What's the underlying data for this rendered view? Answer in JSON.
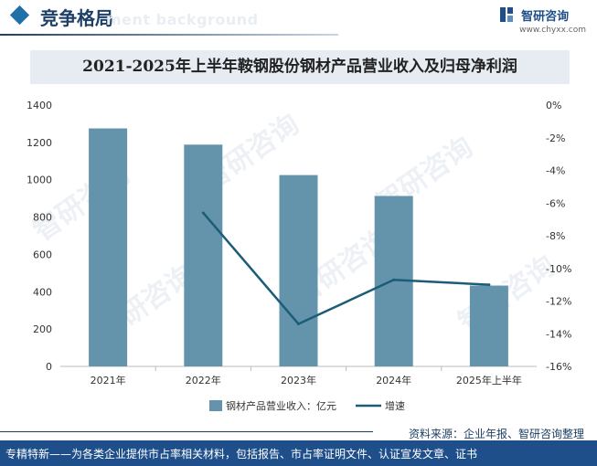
{
  "header": {
    "section_title": "竞争格局",
    "background_text": "ment background",
    "brand_name": "智研咨询",
    "brand_url": "www.chyxx.com"
  },
  "source": "资料来源：企业年报、智研咨询整理",
  "footer": "专精特新——为各类企业提供市占率相关材料，包括报告、市占率证明文件、认证宣发文章、证书",
  "colors": {
    "bar": "#6394ab",
    "line": "#1d5c78",
    "accent": "#1e4f8a"
  },
  "chart_data": {
    "type": "bar+line",
    "title": "2021-2025年上半年鞍钢股份钢材产品营业收入及归母净利润",
    "categories": [
      "2021年",
      "2022年",
      "2023年",
      "2024年",
      "2025年上半年"
    ],
    "bar_series": {
      "name": "钢材产品营业收入：亿元",
      "values": [
        1275,
        1188,
        1025,
        913,
        433
      ]
    },
    "line_series": {
      "name": "增速",
      "values": [
        null,
        -6.6,
        -13.4,
        -10.7,
        -11.0
      ]
    },
    "y_left": {
      "min": 0,
      "max": 1400,
      "ticks": [
        "0",
        "200",
        "400",
        "600",
        "800",
        "1000",
        "1200",
        "1400"
      ]
    },
    "y_right": {
      "min": -16,
      "max": 0,
      "ticks": [
        "0%",
        "-2%",
        "-4%",
        "-6%",
        "-8%",
        "-10%",
        "-12%",
        "-14%",
        "-16%"
      ]
    },
    "legend_position": "bottom-center"
  }
}
